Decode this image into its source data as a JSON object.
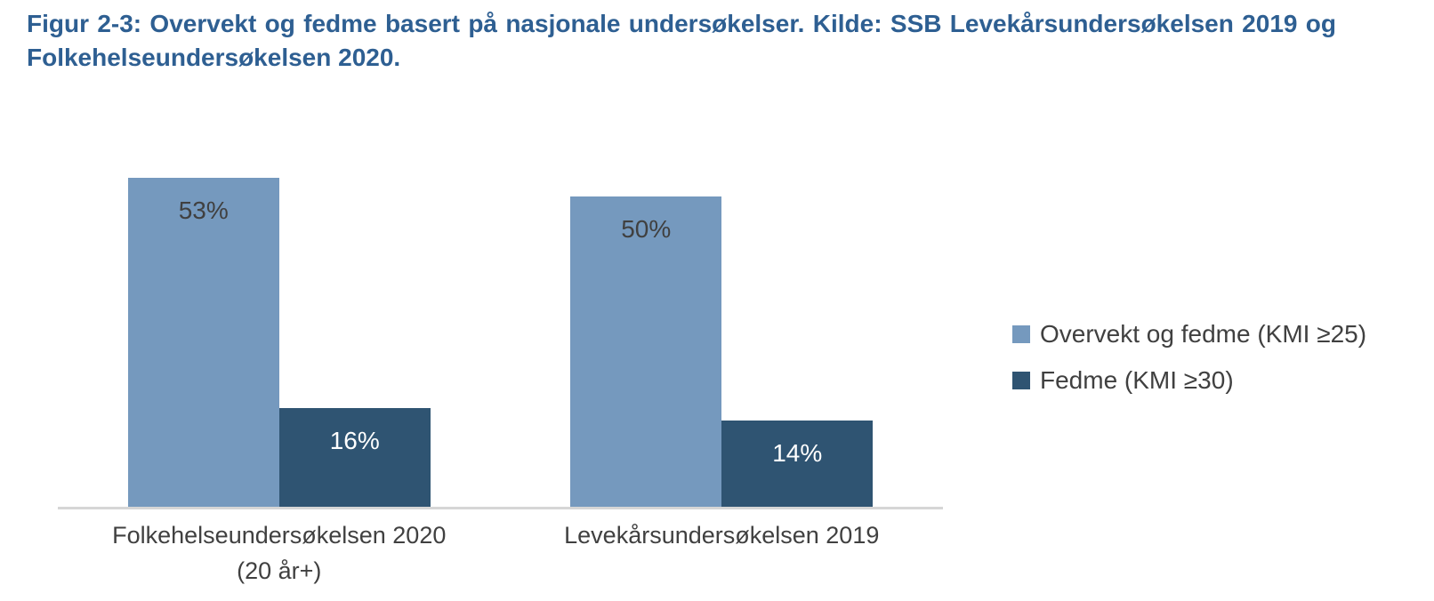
{
  "figure": {
    "title_lines": [
      "Figur 2-3: Overvekt og fedme basert på nasjonale undersøkelser. Kilde: SSB Levekårsundersøkelsen 2019 og",
      "Folkehelseundersøkelsen 2020."
    ]
  },
  "colors": {
    "title_text": "#2E5F92",
    "overvekt_series": "#7599BE",
    "fedme_series": "#2F5472",
    "axis_line": "#D6D6D6",
    "label_text": "#404040",
    "bar_label_on_dark": "#FFFFFF"
  },
  "chart_data": {
    "type": "bar",
    "title": "Figur 2-3: Overvekt og fedme basert på nasjonale undersøkelser. Kilde: SSB Levekårsundersøkelsen 2019 og Folkehelseundersøkelsen 2020.",
    "categories": [
      "Folkehelseundersøkelsen 2020 (20 år+)",
      "Levekårsundersøkelsen 2019"
    ],
    "category_label_lines": [
      [
        "Folkehelseundersøkelsen 2020",
        "(20 år+)"
      ],
      [
        "Levekårsundersøkelsen 2019"
      ]
    ],
    "series": [
      {
        "name": "Overvekt og fedme (KMI ≥25)",
        "values": [
          53,
          50
        ],
        "labels": [
          "53%",
          "50%"
        ],
        "color": "#7599BE",
        "label_color": "#404040"
      },
      {
        "name": "Fedme (KMI ≥30)",
        "values": [
          16,
          14
        ],
        "labels": [
          "16%",
          "14%"
        ],
        "color": "#2F5472",
        "label_color": "#FFFFFF"
      }
    ],
    "unit": "percent",
    "ylim": [
      0,
      60
    ],
    "grid": false,
    "y_axis_labels_visible": false,
    "legend_position": "right"
  }
}
